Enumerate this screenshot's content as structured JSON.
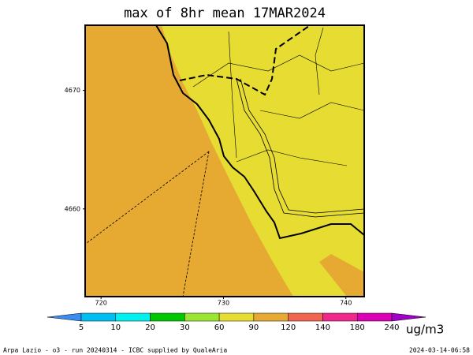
{
  "chart_data": {
    "type": "map",
    "title": "max of 8hr mean 17MAR2024",
    "xlim": [
      718.7,
      741.5
    ],
    "xticks": [
      720,
      730,
      740
    ],
    "ylim": [
      4652.6,
      4675.5
    ],
    "yticks": [
      4660,
      4670
    ],
    "colorbar": {
      "bounds": [
        5,
        10,
        20,
        30,
        60,
        90,
        120,
        140,
        180,
        240
      ],
      "colors": [
        "#3c8cf0",
        "#00bff0",
        "#00f0f0",
        "#00c800",
        "#9be632",
        "#e6dc32",
        "#e6aa32",
        "#f06450",
        "#f0288c",
        "#dc00b4",
        "#a000c8"
      ],
      "unit": "ug/m3"
    },
    "footer": "Arpa Lazio - o3 - run 20240314 - ICBC supplied by QualeAria",
    "timestamp": "2024-03-14-06:58"
  }
}
